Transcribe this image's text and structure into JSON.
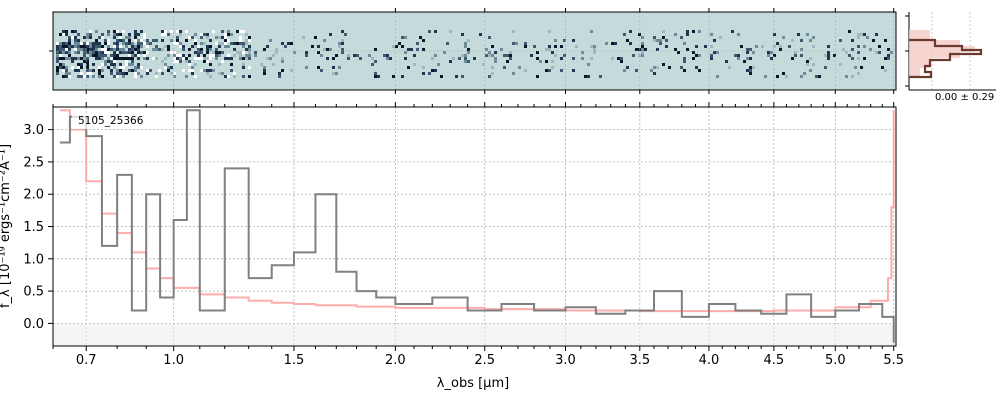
{
  "chart_data": [
    {
      "type": "heatmap",
      "panel": "2d-spectrum",
      "background_color": "#c5dada",
      "note_dark_region_x_um": [
        0.6,
        1.0
      ],
      "grid": true
    },
    {
      "type": "line",
      "panel": "1d-spectrum",
      "annotation": "5105_25366",
      "xlabel": "λ_obs [μm]",
      "ylabel": "f_λ [10⁻¹⁹ ergs⁻¹cm⁻²Å⁻¹]",
      "xlim": [
        0.6,
        5.52
      ],
      "ylim": [
        -0.35,
        3.35
      ],
      "x_scale": "sqrt",
      "x_ticks": [
        0.7,
        1.0,
        1.5,
        2.0,
        2.5,
        3.0,
        3.5,
        4.0,
        4.5,
        5.0,
        5.5
      ],
      "x_tick_labels": [
        "0.7",
        "1.0",
        "1.5",
        "2.0",
        "2.5",
        "3.0",
        "3.5",
        "4.0",
        "4.5",
        "5.0",
        "5.5"
      ],
      "y_ticks": [
        0.0,
        0.5,
        1.0,
        1.5,
        2.0,
        2.5,
        3.0
      ],
      "y_tick_labels": [
        "0.0",
        "0.5",
        "1.0",
        "1.5",
        "2.0",
        "2.5",
        "3.0"
      ],
      "grid": true,
      "series": [
        {
          "role": "flux",
          "color": "#808080",
          "x": [
            0.62,
            0.65,
            0.7,
            0.75,
            0.8,
            0.85,
            0.9,
            0.95,
            1.0,
            1.05,
            1.1,
            1.2,
            1.3,
            1.4,
            1.5,
            1.6,
            1.7,
            1.8,
            1.9,
            2.0,
            2.2,
            2.4,
            2.6,
            2.8,
            3.0,
            3.2,
            3.4,
            3.6,
            3.8,
            4.0,
            4.2,
            4.4,
            4.6,
            4.8,
            5.0,
            5.2,
            5.4,
            5.5
          ],
          "y": [
            2.8,
            3.2,
            2.9,
            1.2,
            2.3,
            0.2,
            2.0,
            0.4,
            1.6,
            3.3,
            0.2,
            2.4,
            0.7,
            0.9,
            1.1,
            2.0,
            0.8,
            0.5,
            0.4,
            0.3,
            0.4,
            0.2,
            0.3,
            0.2,
            0.25,
            0.15,
            0.2,
            0.5,
            0.1,
            0.3,
            0.2,
            0.15,
            0.45,
            0.1,
            0.2,
            0.3,
            0.1,
            -0.3
          ]
        },
        {
          "role": "error",
          "color": "#ff9e9e",
          "x": [
            0.62,
            0.65,
            0.7,
            0.75,
            0.8,
            0.85,
            0.9,
            0.95,
            1.0,
            1.1,
            1.2,
            1.3,
            1.4,
            1.5,
            1.6,
            1.8,
            2.0,
            2.5,
            3.0,
            3.5,
            4.0,
            4.5,
            5.0,
            5.3,
            5.45,
            5.48,
            5.5
          ],
          "y": [
            3.3,
            3.0,
            2.2,
            1.7,
            1.4,
            1.1,
            0.85,
            0.7,
            0.55,
            0.45,
            0.4,
            0.35,
            0.32,
            0.3,
            0.28,
            0.26,
            0.24,
            0.22,
            0.2,
            0.19,
            0.19,
            0.2,
            0.25,
            0.35,
            0.7,
            1.8,
            3.3
          ]
        }
      ]
    },
    {
      "type": "histogram",
      "panel": "pixel-histogram",
      "annotation": "0.00 ± 0.29",
      "grid": true
    }
  ]
}
